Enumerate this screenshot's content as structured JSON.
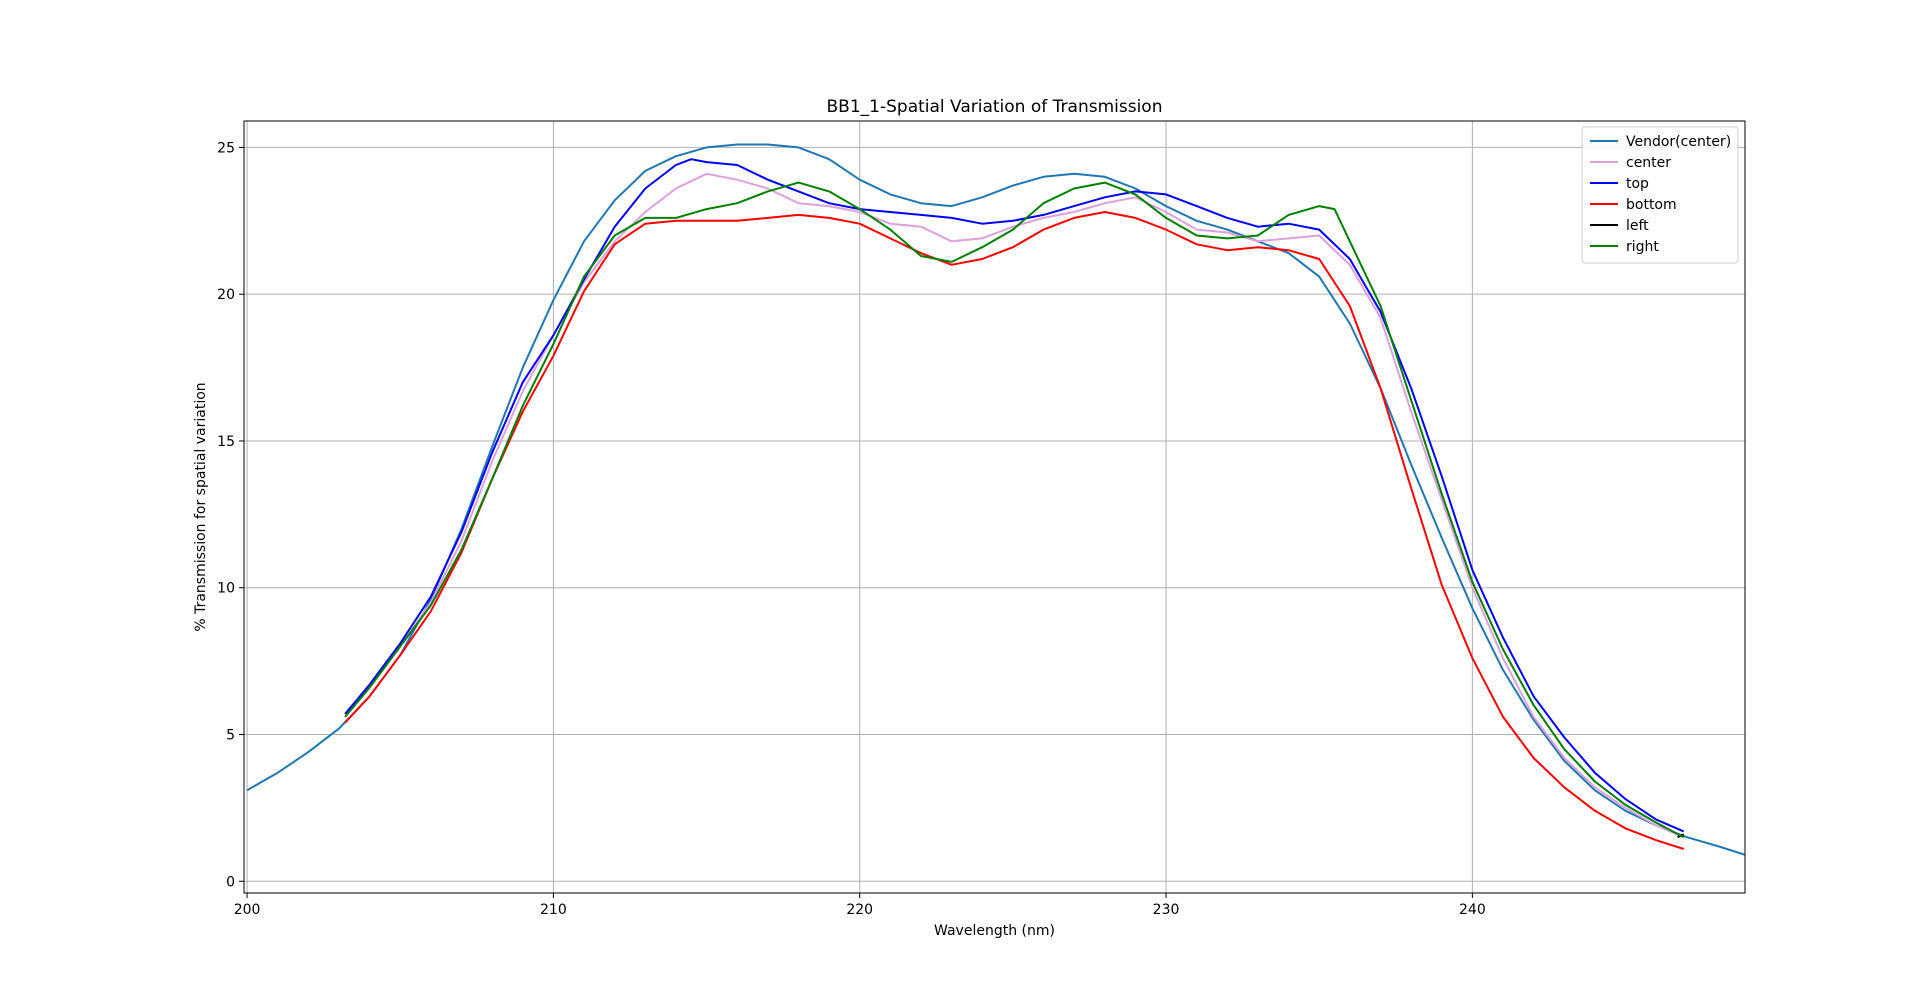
{
  "chart_data": {
    "type": "line",
    "title": "BB1_1-Spatial Variation of Transmission",
    "xlabel": "Wavelength (nm)",
    "ylabel": "% Transmission for spatial variation",
    "xlim": [
      199.9,
      248.9
    ],
    "ylim": [
      -0.4,
      25.9
    ],
    "xticks": [
      200,
      210,
      220,
      230,
      240
    ],
    "yticks": [
      0,
      5,
      10,
      15,
      20,
      25
    ],
    "grid": true,
    "legend_position": "top-right",
    "series": [
      {
        "name": "Vendor(center)",
        "color": "#1f77b4",
        "x": [
          200,
          201,
          202,
          203,
          204,
          205,
          206,
          207,
          208,
          209,
          210,
          211,
          212,
          213,
          214,
          215,
          216,
          217,
          218,
          219,
          220,
          221,
          222,
          223,
          224,
          225,
          226,
          227,
          228,
          229,
          230,
          231,
          232,
          233,
          234,
          235,
          236,
          237,
          238,
          239,
          240,
          241,
          242,
          243,
          244,
          245,
          246,
          247,
          248,
          248.9
        ],
        "y": [
          3.1,
          3.7,
          4.4,
          5.2,
          6.3,
          7.7,
          9.6,
          12.0,
          14.8,
          17.5,
          19.8,
          21.8,
          23.2,
          24.2,
          24.7,
          25.0,
          25.1,
          25.1,
          25.0,
          24.6,
          23.9,
          23.4,
          23.1,
          23.0,
          23.3,
          23.7,
          24.0,
          24.1,
          24.0,
          23.6,
          23.0,
          22.5,
          22.2,
          21.8,
          21.4,
          20.6,
          19.0,
          16.8,
          14.2,
          11.7,
          9.3,
          7.2,
          5.5,
          4.1,
          3.1,
          2.4,
          1.9,
          1.5,
          1.2,
          0.9
        ]
      },
      {
        "name": "center",
        "color": "#dda0dd",
        "x": [
          203.2,
          204,
          205,
          206,
          207,
          208,
          209,
          210,
          211,
          212,
          213,
          214,
          215,
          216,
          217,
          218,
          219,
          220,
          221,
          222,
          223,
          224,
          225,
          226,
          227,
          228,
          229,
          230,
          231,
          232,
          233,
          234,
          235,
          236,
          237,
          238,
          239,
          240,
          241,
          242,
          243,
          244,
          245,
          246,
          246.9
        ],
        "y": [
          5.6,
          6.6,
          8.0,
          9.5,
          11.6,
          14.3,
          16.7,
          18.6,
          20.4,
          21.8,
          22.8,
          23.6,
          24.1,
          23.9,
          23.6,
          23.1,
          23.0,
          22.8,
          22.4,
          22.3,
          21.8,
          21.9,
          22.3,
          22.6,
          22.8,
          23.1,
          23.3,
          22.8,
          22.2,
          22.1,
          21.8,
          21.9,
          22.0,
          21.0,
          19.2,
          16.0,
          13.0,
          10.0,
          7.6,
          5.6,
          4.2,
          3.2,
          2.5,
          1.9,
          1.5
        ]
      },
      {
        "name": "top",
        "color": "#0000ff",
        "x": [
          203.2,
          204,
          205,
          206,
          207,
          208,
          209,
          210,
          211,
          212,
          213,
          214,
          214.5,
          215,
          216,
          217,
          218,
          219,
          220,
          221,
          222,
          223,
          224,
          225,
          226,
          227,
          228,
          229,
          230,
          231,
          232,
          233,
          234,
          235,
          236,
          237,
          238,
          239,
          240,
          241,
          242,
          243,
          244,
          245,
          246,
          246.9
        ],
        "y": [
          5.7,
          6.7,
          8.1,
          9.7,
          11.9,
          14.6,
          17.0,
          18.6,
          20.5,
          22.3,
          23.6,
          24.4,
          24.6,
          24.5,
          24.4,
          23.9,
          23.5,
          23.1,
          22.9,
          22.8,
          22.7,
          22.6,
          22.4,
          22.5,
          22.7,
          23.0,
          23.3,
          23.5,
          23.4,
          23.0,
          22.6,
          22.3,
          22.4,
          22.2,
          21.2,
          19.4,
          16.8,
          13.8,
          10.6,
          8.3,
          6.3,
          4.9,
          3.7,
          2.8,
          2.1,
          1.7
        ]
      },
      {
        "name": "bottom",
        "color": "#ff0000",
        "x": [
          203.2,
          204,
          205,
          206,
          207,
          208,
          209,
          210,
          211,
          212,
          213,
          214,
          215,
          216,
          217,
          218,
          219,
          220,
          221,
          222,
          223,
          224,
          225,
          226,
          227,
          228,
          229,
          230,
          231,
          232,
          233,
          234,
          235,
          236,
          237,
          238,
          239,
          240,
          241,
          242,
          243,
          244,
          245,
          246,
          246.9
        ],
        "y": [
          5.4,
          6.3,
          7.7,
          9.2,
          11.2,
          13.7,
          16.0,
          17.9,
          20.1,
          21.7,
          22.4,
          22.5,
          22.5,
          22.5,
          22.6,
          22.7,
          22.6,
          22.4,
          21.9,
          21.4,
          21.0,
          21.2,
          21.6,
          22.2,
          22.6,
          22.8,
          22.6,
          22.2,
          21.7,
          21.5,
          21.6,
          21.5,
          21.2,
          19.6,
          16.8,
          13.4,
          10.1,
          7.6,
          5.6,
          4.2,
          3.2,
          2.4,
          1.8,
          1.4,
          1.1
        ]
      },
      {
        "name": "left",
        "color": "#000000",
        "x": [
          246.7,
          246.9
        ],
        "y": [
          1.5,
          1.6
        ]
      },
      {
        "name": "right",
        "color": "#008000",
        "x": [
          203.2,
          204,
          205,
          206,
          207,
          208,
          209,
          210,
          211,
          212,
          213,
          214,
          215,
          216,
          217,
          218,
          219,
          220,
          221,
          222,
          223,
          224,
          225,
          226,
          227,
          228,
          229,
          230,
          231,
          232,
          233,
          234,
          235,
          235.5,
          236,
          237,
          238,
          239,
          240,
          241,
          242,
          243,
          244,
          245,
          246,
          246.9
        ],
        "y": [
          5.6,
          6.6,
          8.0,
          9.4,
          11.3,
          13.7,
          16.2,
          18.3,
          20.6,
          22.0,
          22.6,
          22.6,
          22.9,
          23.1,
          23.5,
          23.8,
          23.5,
          22.9,
          22.2,
          21.3,
          21.1,
          21.6,
          22.2,
          23.1,
          23.6,
          23.8,
          23.4,
          22.6,
          22.0,
          21.9,
          22.0,
          22.7,
          23.0,
          22.9,
          21.8,
          19.6,
          16.4,
          13.2,
          10.2,
          7.9,
          6.0,
          4.5,
          3.4,
          2.6,
          2.0,
          1.5
        ]
      }
    ]
  }
}
